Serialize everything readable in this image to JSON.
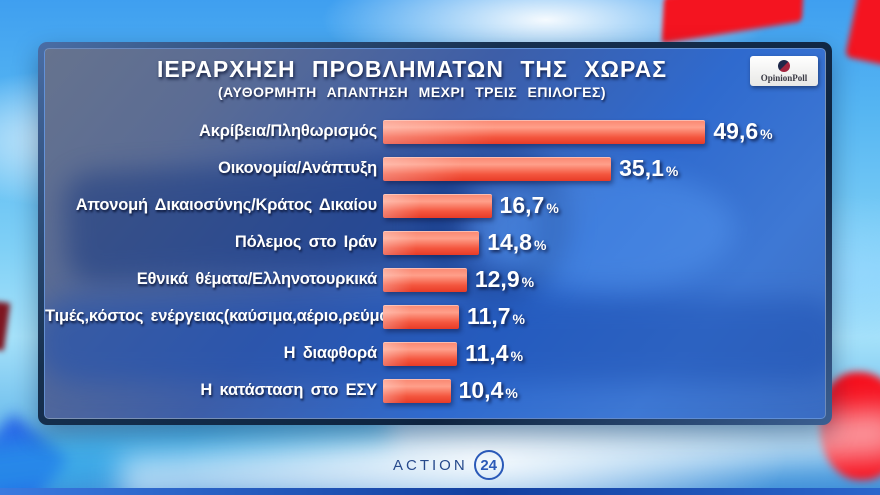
{
  "header": {
    "title": "ΙΕΡΑΡΧΗΣΗ ΠΡΟΒΛΗΜΑΤΩΝ ΤΗΣ ΧΩΡΑΣ",
    "subtitle": "(ΑΥΘΟΡΜΗΤΗ ΑΠΑΝΤΗΣΗ ΜΕΧΡΙ ΤΡΕΙΣ ΕΠΙΛΟΓΕΣ)"
  },
  "branding": {
    "pollster": "OpinionPoll",
    "channel_name": "ACTION",
    "channel_number": "24"
  },
  "chart_data": {
    "type": "bar",
    "orientation": "horizontal",
    "title": "ΙΕΡΑΡΧΗΣΗ ΠΡΟΒΛΗΜΑΤΩΝ ΤΗΣ ΧΩΡΑΣ",
    "subtitle": "(ΑΥΘΟΡΜΗΤΗ ΑΠΑΝΤΗΣΗ ΜΕΧΡΙ ΤΡΕΙΣ ΕΠΙΛΟΓΕΣ)",
    "unit": "%",
    "decimal_style": "comma",
    "categories": [
      "Ακρίβεια/Πληθωρισμός",
      "Οικονομία/Ανάπτυξη",
      "Απονομή Δικαιοσύνης/Κράτος Δικαίου",
      "Πόλεμος στο Ιράν",
      "Εθνικά θέματα/Ελληνοτουρκικά",
      "Τιμές,κόστος ενέργειας(καύσιμα,αέριο,ρεύμα)",
      "Η διαφθορά",
      "Η κατάσταση στο ΕΣΥ"
    ],
    "values": [
      49.6,
      35.1,
      16.7,
      14.8,
      12.9,
      11.7,
      11.4,
      10.4
    ],
    "value_labels": [
      "49,6",
      "35,1",
      "16,7",
      "14,8",
      "12,9",
      "11,7",
      "11,4",
      "10,4"
    ],
    "bar_color": "#f04a32",
    "xlim": [
      0,
      55
    ],
    "grid": false,
    "legend": false
  }
}
